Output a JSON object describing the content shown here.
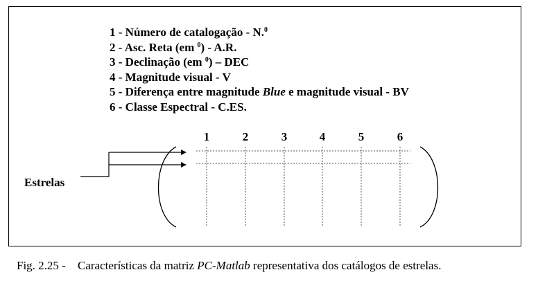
{
  "legend": {
    "item1": {
      "text": "1 - Número de catalogação - N.",
      "sup": "0"
    },
    "item2": {
      "before": "2 - Asc. Reta (em ",
      "sup": "0",
      "after": ") - A.R."
    },
    "item3": {
      "before": "3 - Declinação (em ",
      "sup": "0",
      "after": ") – DEC"
    },
    "item4": "4 - Magnitude visual - V",
    "item5": {
      "before": "5 - Diferença entre magnitude ",
      "em": "Blue",
      "after": " e magnitude visual  - BV"
    },
    "item6": "6 - Classe Espectral - C.ES."
  },
  "columns": [
    "1",
    "2",
    "3",
    "4",
    "5",
    "6"
  ],
  "rows_label": "Estrelas",
  "caption": {
    "label": "Fig. 2.25 -",
    "before": "Características da matriz ",
    "em": "PC-Matlab",
    "after": " representativa dos catálogos de estrelas."
  }
}
